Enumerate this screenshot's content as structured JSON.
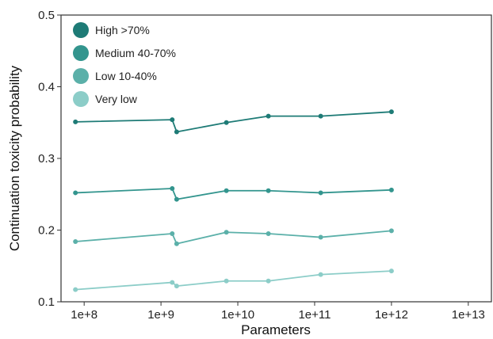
{
  "chart_data": {
    "type": "line",
    "xlabel": "Parameters",
    "ylabel": "Continuation toxicity probability",
    "x_scale": "log",
    "xlim": [
      50000000,
      20000000000000
    ],
    "ylim": [
      0.1,
      0.5
    ],
    "x_ticks": [
      100000000,
      1000000000,
      10000000000,
      100000000000,
      1000000000000,
      10000000000000
    ],
    "x_tick_labels": [
      "1e+8",
      "1e+9",
      "1e+10",
      "1e+11",
      "1e+12",
      "1e+13"
    ],
    "y_ticks": [
      0.1,
      0.2,
      0.3,
      0.4,
      0.5
    ],
    "y_tick_labels": [
      "0.1",
      "0.2",
      "0.3",
      "0.4",
      "0.5"
    ],
    "grid": false,
    "legend_position": "top-left",
    "x": [
      77000000,
      1400000000,
      1600000000,
      7100000000,
      25000000000,
      120000000000,
      1000000000000
    ],
    "series": [
      {
        "name": "High >70%",
        "color": "#1e7b76",
        "values": [
          0.351,
          0.354,
          0.337,
          0.35,
          0.359,
          0.359,
          0.365
        ]
      },
      {
        "name": "Medium 40-70%",
        "color": "#33958e",
        "values": [
          0.252,
          0.258,
          0.243,
          0.255,
          0.255,
          0.252,
          0.256
        ]
      },
      {
        "name": "Low 10-40%",
        "color": "#5bb0a9",
        "values": [
          0.184,
          0.195,
          0.181,
          0.197,
          0.195,
          0.19,
          0.199
        ]
      },
      {
        "name": "Very low",
        "color": "#8ccdc8",
        "values": [
          0.117,
          0.127,
          0.122,
          0.129,
          0.129,
          0.138,
          0.143
        ]
      }
    ]
  }
}
